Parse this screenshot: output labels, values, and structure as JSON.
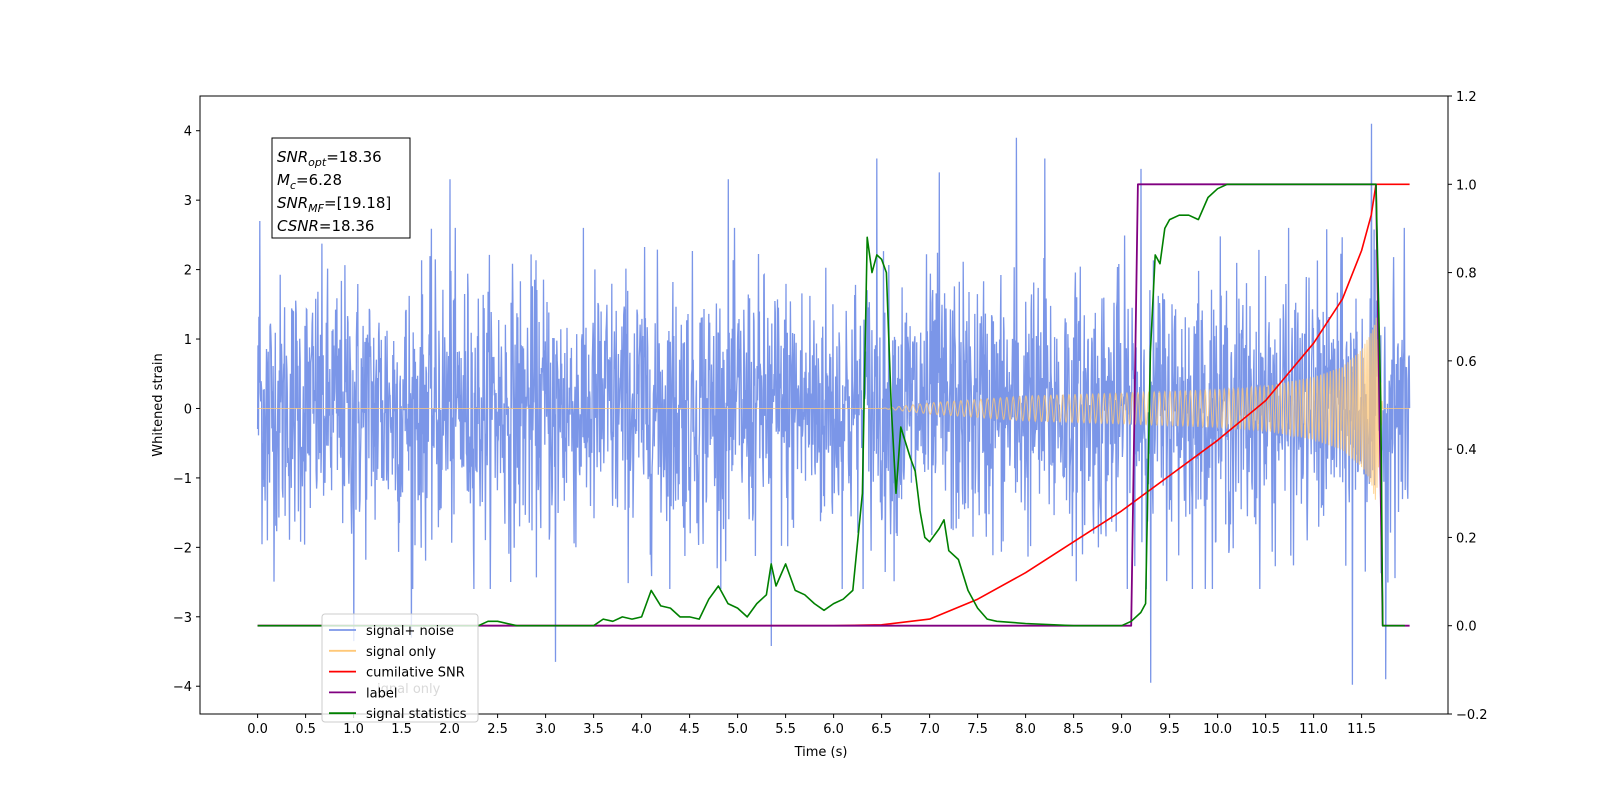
{
  "chart_data": {
    "type": "line",
    "xlabel": "Time (s)",
    "ylabel": "Whitened strain",
    "xlim": [
      -0.6,
      12.4
    ],
    "ylim": [
      -4.4,
      4.5
    ],
    "y2lim": [
      -0.2,
      1.2
    ],
    "xticks": [
      0.0,
      0.5,
      1.0,
      1.5,
      2.0,
      2.5,
      3.0,
      3.5,
      4.0,
      4.5,
      5.0,
      5.5,
      6.0,
      6.5,
      7.0,
      7.5,
      8.0,
      8.5,
      9.0,
      9.5,
      10.0,
      10.5,
      11.0,
      11.5
    ],
    "xtick_labels": [
      "0.0",
      "0.5",
      "1.0",
      "1.5",
      "2.0",
      "2.5",
      "3.0",
      "3.5",
      "4.0",
      "4.5",
      "5.0",
      "5.5",
      "6.0",
      "6.5",
      "7.0",
      "7.5",
      "8.0",
      "8.5",
      "9.0",
      "9.5",
      "10.0",
      "10.5",
      "11.0",
      "11.5"
    ],
    "yticks": [
      4,
      3,
      2,
      1,
      0,
      -1,
      -2,
      -3,
      -4
    ],
    "ytick_labels": [
      "4",
      "3",
      "2",
      "1",
      "0",
      "−1",
      "−2",
      "−3",
      "−4"
    ],
    "y2ticks": [
      1.2,
      1.0,
      0.8,
      0.6,
      0.4,
      0.2,
      0.0,
      -0.2
    ],
    "y2tick_labels": [
      "1.2",
      "1.0",
      "0.8",
      "0.6",
      "0.4",
      "0.2",
      "0.0",
      "−0.2"
    ],
    "grid": false,
    "legend_position": "bottom-left",
    "annotation": {
      "lines": [
        {
          "base": "SNR",
          "sub": "opt",
          "rest": "=18.36"
        },
        {
          "base": "M",
          "sub": "c",
          "rest": "=6.28"
        },
        {
          "base": "SNR",
          "sub": "MF",
          "rest": "=[19.18]"
        },
        {
          "base": "CSNR",
          "sub": "",
          "rest": "=18.36"
        }
      ]
    },
    "legend": [
      {
        "label": "signal+ noise",
        "color": "#7b96e8"
      },
      {
        "label": "signal only",
        "color": "#ffc878"
      },
      {
        "label": "cumilative SNR",
        "color": "#ff0000"
      },
      {
        "label": "label",
        "color": "#800080"
      },
      {
        "label": "signal statistics",
        "color": "#008000"
      }
    ],
    "hidden_legend_fragment": "ignal only",
    "series": [
      {
        "name": "signal+ noise",
        "axis": "left",
        "color": "#7b96e8",
        "x_range": [
          0.0,
          12.0
        ],
        "envelope_typical": 1.5,
        "peaks": [
          [
            0.02,
            2.7
          ],
          [
            0.1,
            -1.9
          ],
          [
            1.0,
            -3.35
          ],
          [
            1.6,
            -3.3
          ],
          [
            2.0,
            3.3
          ],
          [
            3.1,
            -3.65
          ],
          [
            4.9,
            3.3
          ],
          [
            5.35,
            -3.42
          ],
          [
            6.45,
            3.6
          ],
          [
            7.1,
            3.4
          ],
          [
            7.9,
            3.9
          ],
          [
            8.2,
            3.6
          ],
          [
            9.2,
            3.45
          ],
          [
            9.3,
            -3.95
          ],
          [
            11.4,
            -3.98
          ],
          [
            11.6,
            4.1
          ],
          [
            11.75,
            -3.9
          ]
        ]
      },
      {
        "name": "signal only",
        "axis": "left",
        "color": "#ffc878",
        "amp_t": [
          0.0,
          6.5,
          7.0,
          8.0,
          9.0,
          10.0,
          10.5,
          11.0,
          11.3,
          11.5,
          11.6,
          11.65,
          11.72,
          12.0
        ],
        "amp_v": [
          0.0,
          0.0,
          0.08,
          0.18,
          0.22,
          0.27,
          0.32,
          0.45,
          0.6,
          0.85,
          1.1,
          1.35,
          0.0,
          0.0
        ]
      },
      {
        "name": "cumilative SNR",
        "axis": "right",
        "color": "#ff0000",
        "x": [
          0.0,
          6.0,
          6.5,
          7.0,
          7.5,
          8.0,
          8.5,
          9.0,
          9.5,
          10.0,
          10.5,
          11.0,
          11.3,
          11.5,
          11.6,
          11.65,
          11.72,
          12.0
        ],
        "y": [
          0.0,
          0.0,
          0.002,
          0.015,
          0.06,
          0.12,
          0.19,
          0.26,
          0.34,
          0.42,
          0.51,
          0.64,
          0.74,
          0.85,
          0.93,
          1.0,
          1.0,
          1.0
        ]
      },
      {
        "name": "label",
        "axis": "right",
        "color": "#800080",
        "x": [
          0.0,
          9.1,
          9.17,
          11.65,
          11.72,
          12.0
        ],
        "y": [
          0.0,
          0.0,
          1.0,
          1.0,
          0.0,
          0.0
        ]
      },
      {
        "name": "signal statistics",
        "axis": "right",
        "color": "#008000",
        "x": [
          0.0,
          2.3,
          2.4,
          2.5,
          2.7,
          3.0,
          3.5,
          3.6,
          3.7,
          3.8,
          3.9,
          4.0,
          4.1,
          4.2,
          4.3,
          4.4,
          4.5,
          4.6,
          4.7,
          4.8,
          4.9,
          5.0,
          5.1,
          5.2,
          5.3,
          5.35,
          5.4,
          5.5,
          5.6,
          5.7,
          5.8,
          5.9,
          6.0,
          6.1,
          6.2,
          6.3,
          6.35,
          6.4,
          6.45,
          6.5,
          6.55,
          6.6,
          6.65,
          6.7,
          6.8,
          6.85,
          6.9,
          6.95,
          7.0,
          7.1,
          7.15,
          7.2,
          7.3,
          7.4,
          7.5,
          7.6,
          7.7,
          8.0,
          8.5,
          9.0,
          9.1,
          9.2,
          9.25,
          9.3,
          9.35,
          9.4,
          9.45,
          9.5,
          9.6,
          9.7,
          9.8,
          9.9,
          10.0,
          10.1,
          10.2,
          11.0,
          11.6,
          11.65,
          11.7,
          11.72,
          11.8,
          11.9,
          11.95
        ],
        "y": [
          0.0,
          0.0,
          0.01,
          0.01,
          0.0,
          0.0,
          0.0,
          0.015,
          0.01,
          0.02,
          0.015,
          0.02,
          0.08,
          0.045,
          0.04,
          0.02,
          0.02,
          0.015,
          0.06,
          0.09,
          0.05,
          0.04,
          0.02,
          0.05,
          0.07,
          0.14,
          0.09,
          0.14,
          0.08,
          0.07,
          0.05,
          0.035,
          0.05,
          0.06,
          0.08,
          0.3,
          0.88,
          0.8,
          0.84,
          0.83,
          0.8,
          0.5,
          0.3,
          0.45,
          0.38,
          0.35,
          0.26,
          0.2,
          0.19,
          0.22,
          0.24,
          0.17,
          0.15,
          0.08,
          0.04,
          0.015,
          0.01,
          0.005,
          0.0,
          0.0,
          0.01,
          0.03,
          0.05,
          0.62,
          0.84,
          0.82,
          0.9,
          0.92,
          0.93,
          0.93,
          0.92,
          0.97,
          0.99,
          1.0,
          1.0,
          1.0,
          1.0,
          1.0,
          0.5,
          0.0,
          0.0,
          0.0,
          0.0
        ]
      }
    ]
  }
}
